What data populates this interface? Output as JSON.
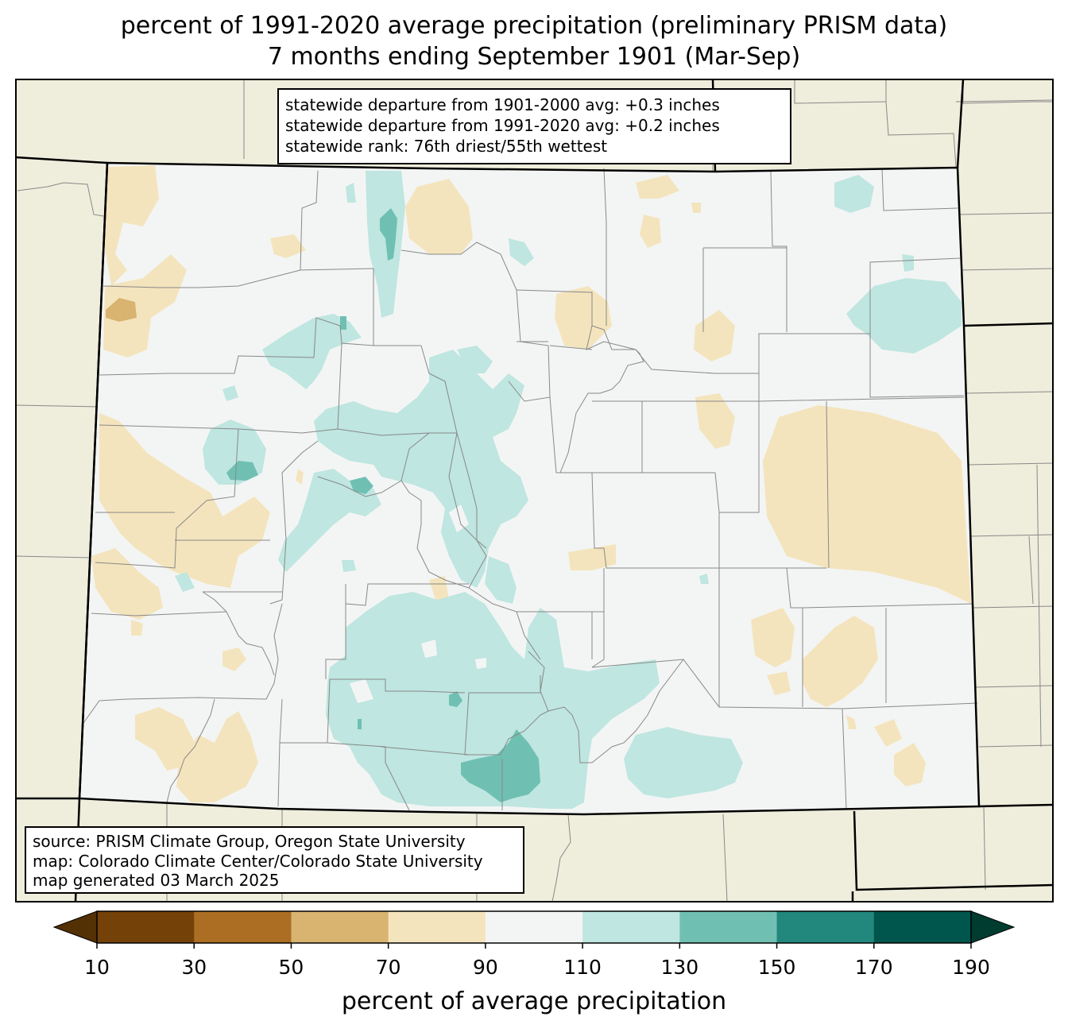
{
  "title": {
    "line1": "percent of 1991-2020 average precipitation (preliminary PRISM data)",
    "line2": "7 months ending September 1901 (Mar-Sep)"
  },
  "stats": {
    "line1": "statewide departure from 1901-2000 avg: +0.3 inches",
    "line2": "statewide departure from 1991-2020 avg: +0.2 inches",
    "line3": "statewide rank: 76th driest/55th wettest"
  },
  "source": {
    "line1": "source: PRISM Climate Group, Oregon State University",
    "line2": "map: Colorado Climate Center/Colorado State University",
    "line3": "map generated 03 March 2025"
  },
  "colorbar": {
    "label": "percent of average precipitation",
    "ticks": [
      "10",
      "30",
      "50",
      "70",
      "90",
      "110",
      "130",
      "150",
      "170",
      "190"
    ],
    "under_color": "#543005",
    "over_color": "#003c30",
    "colors": [
      "#744209",
      "#ab6e23",
      "#d9b370",
      "#f4e4bd",
      "#f3f5f4",
      "#bfe6e0",
      "#6fc0b3",
      "#22877c",
      "#00564c"
    ]
  },
  "colors": {
    "neighbor_land": "#efeddc",
    "state_fill": "#f3f5f4"
  }
}
